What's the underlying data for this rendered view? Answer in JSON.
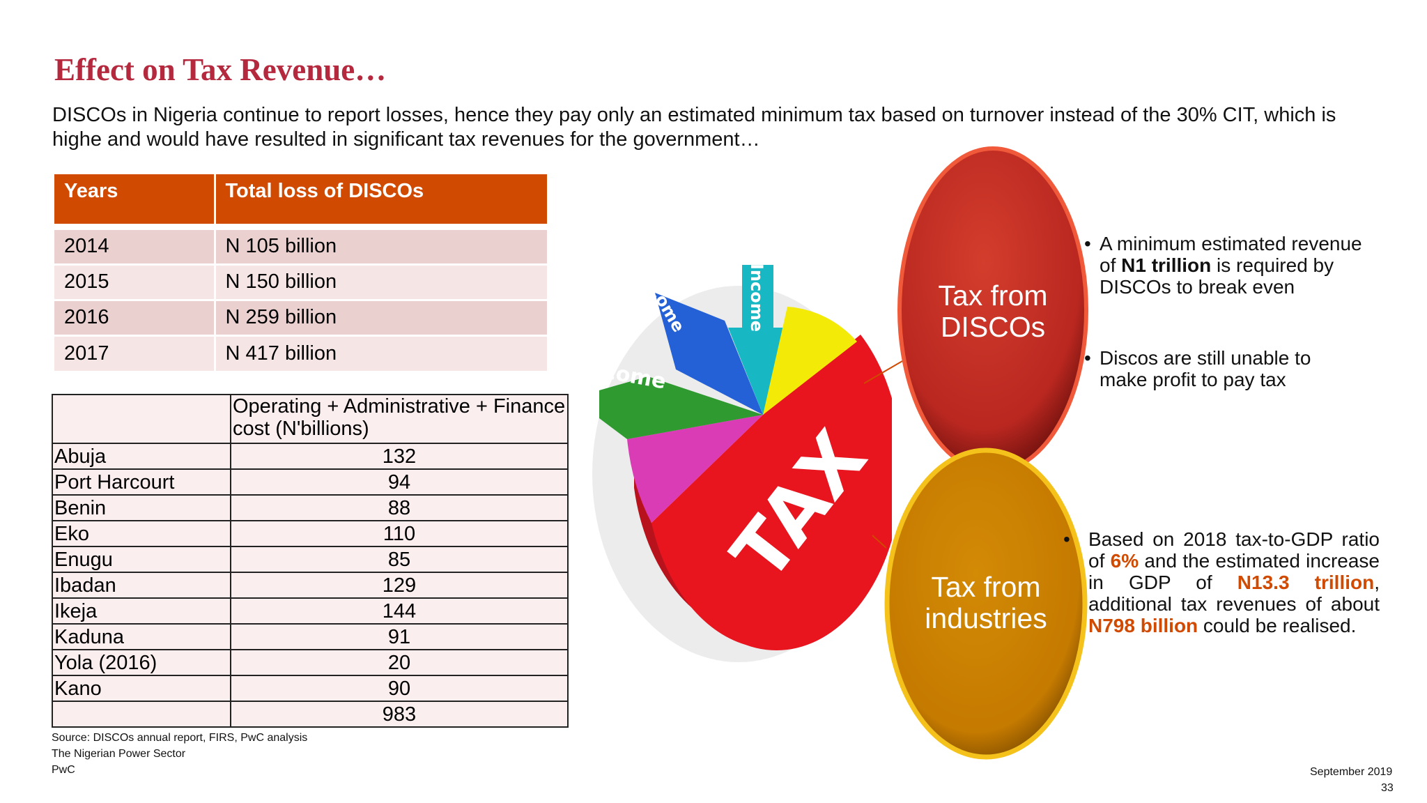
{
  "title": "Effect on Tax Revenue…",
  "intro": "DISCOs in Nigeria continue to report losses, hence they pay only an estimated minimum tax based on turnover instead of the 30% CIT, which is highe and would have resulted in significant tax revenues for the government…",
  "loss_table": {
    "headers": [
      "Years",
      "Total loss of DISCOs"
    ],
    "rows": [
      [
        "2014",
        "N 105 billion"
      ],
      [
        "2015",
        "N 150 billion"
      ],
      [
        "2016",
        "N 259 billion"
      ],
      [
        "2017",
        "N 417 billion"
      ]
    ]
  },
  "cost_table": {
    "header": "Operating +  Administrative + Finance cost (N'billions)",
    "rows": [
      [
        "Abuja",
        "132"
      ],
      [
        "Port Harcourt",
        "94"
      ],
      [
        "Benin",
        "88"
      ],
      [
        "Eko",
        "110"
      ],
      [
        "Enugu",
        "85"
      ],
      [
        "Ibadan",
        "129"
      ],
      [
        "Ikeja",
        "144"
      ],
      [
        "Kaduna",
        "91"
      ],
      [
        "Yola (2016)",
        "20"
      ],
      [
        "Kano",
        "90"
      ],
      [
        "",
        "983"
      ]
    ]
  },
  "footer": {
    "source": "Source: DISCOs annual report, FIRS, PwC analysis",
    "publication": "The Nigerian Power Sector",
    "brand": "PwC",
    "date": "September 2019",
    "page": "33"
  },
  "pie_image": {
    "labels": [
      "TAX",
      "Income",
      "come",
      "come"
    ]
  },
  "bubble_discos": {
    "line1": "Tax from",
    "line2": "DISCOs",
    "color": "#c0302a"
  },
  "bubble_industries": {
    "line1": "Tax from",
    "line2": "industries",
    "color": "#cf7f00"
  },
  "discos_bullets": {
    "b1_pre": "A minimum estimated revenue of ",
    "b1_bold": "N1 trillion",
    "b1_post": " is required by DISCOs to break even",
    "b2": "Discos are still unable to make profit to pay tax"
  },
  "industries_bullet": {
    "t1": "Based on 2018 tax-to-GDP ratio of ",
    "v1": "6%",
    "t2": " and the estimated increase in GDP of ",
    "v2": "N13.3 trillion",
    "t3": ", additional tax revenues of about ",
    "v3": "N798 billion",
    "t4": " could be realised."
  },
  "colors": {
    "title": "#b5293f",
    "table_header": "#d04a02",
    "row_dark": "#ebd0d0",
    "row_light": "#f6e5e5"
  }
}
